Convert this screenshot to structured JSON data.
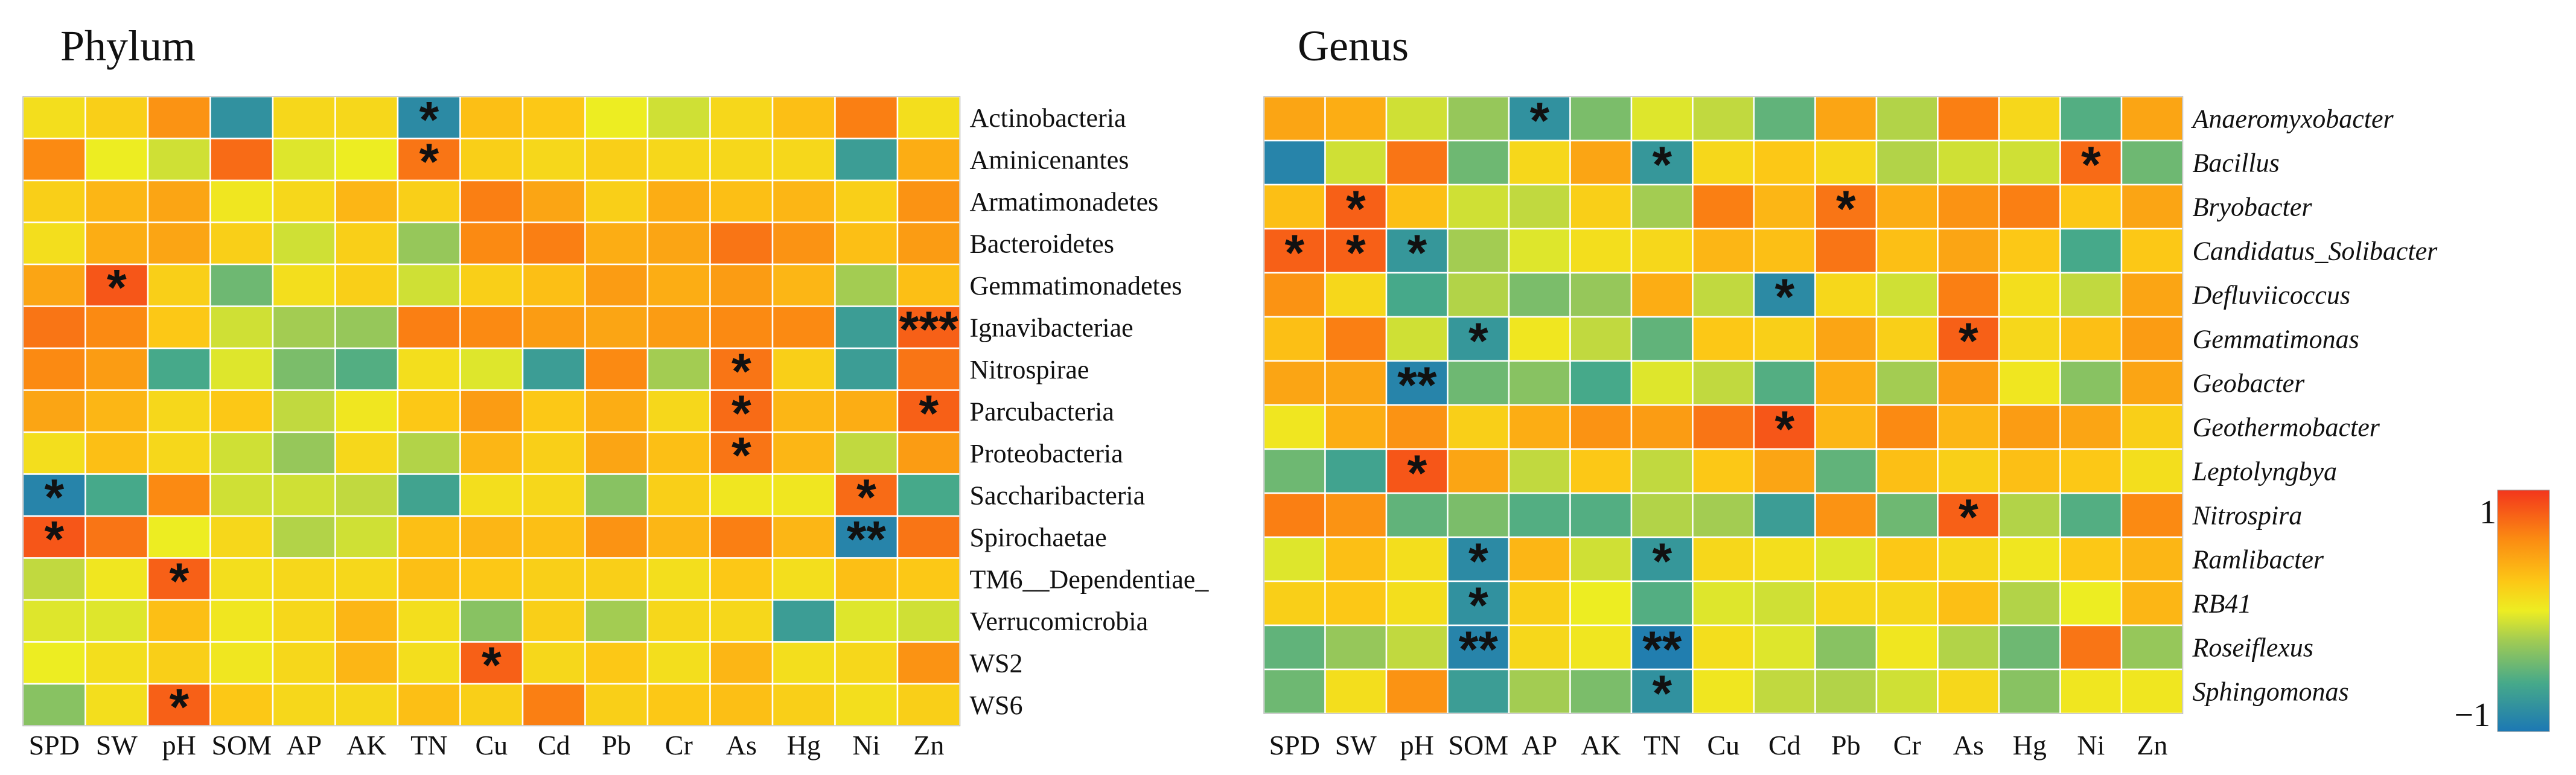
{
  "chart_data": [
    {
      "type": "heatmap",
      "title": "Phylum",
      "columns": [
        "SPD",
        "SW",
        "pH",
        "SOM",
        "AP",
        "AK",
        "TN",
        "Cu",
        "Cd",
        "Pb",
        "Cr",
        "As",
        "Hg",
        "Ni",
        "Zn"
      ],
      "rows": [
        "Actinobacteria",
        "Aminicenantes",
        "Armatimonadetes",
        "Bacteroidetes",
        "Gemmatimonadetes",
        "Ignavibacteriae",
        "Nitrospirae",
        "Parcubacteria",
        "Proteobacteria",
        "Saccharibacteria",
        "Spirochaetae",
        "TM6__Dependentiae_",
        "Verrucomicrobia",
        "WS2",
        "WS6"
      ],
      "values": [
        [
          0.1,
          0.2,
          0.55,
          -0.8,
          0.15,
          0.15,
          -0.85,
          0.3,
          0.25,
          0.0,
          -0.1,
          0.15,
          0.3,
          0.65,
          0.1
        ],
        [
          0.6,
          0.0,
          -0.1,
          0.75,
          -0.05,
          0.0,
          0.7,
          0.2,
          0.15,
          0.2,
          0.15,
          0.15,
          0.15,
          -0.7,
          0.4
        ],
        [
          0.2,
          0.35,
          0.45,
          0.05,
          0.15,
          0.35,
          0.2,
          0.65,
          0.45,
          0.2,
          0.4,
          0.3,
          0.35,
          0.2,
          0.55
        ],
        [
          0.1,
          0.4,
          0.45,
          0.2,
          -0.1,
          0.2,
          -0.3,
          0.6,
          0.65,
          0.4,
          0.45,
          0.7,
          0.55,
          0.3,
          0.5
        ],
        [
          0.45,
          0.85,
          0.2,
          -0.45,
          0.1,
          0.2,
          -0.1,
          0.2,
          0.3,
          0.5,
          0.4,
          0.5,
          0.35,
          -0.25,
          0.3
        ],
        [
          0.7,
          0.6,
          0.25,
          -0.1,
          -0.25,
          -0.3,
          0.65,
          0.6,
          0.5,
          0.45,
          0.5,
          0.6,
          0.6,
          -0.7,
          0.8
        ],
        [
          0.6,
          0.5,
          -0.6,
          -0.05,
          -0.4,
          -0.55,
          0.1,
          -0.05,
          -0.7,
          0.6,
          -0.25,
          0.7,
          0.2,
          -0.7,
          0.7
        ],
        [
          0.45,
          0.35,
          0.15,
          0.25,
          -0.15,
          0.05,
          0.25,
          0.5,
          0.25,
          0.4,
          0.15,
          0.75,
          0.35,
          0.4,
          0.8
        ],
        [
          0.1,
          0.3,
          0.15,
          -0.1,
          -0.3,
          0.15,
          -0.2,
          0.35,
          0.2,
          0.45,
          0.3,
          0.7,
          0.35,
          -0.15,
          0.5
        ],
        [
          -0.9,
          -0.6,
          0.6,
          -0.1,
          -0.1,
          -0.15,
          -0.65,
          0.1,
          0.15,
          -0.35,
          0.2,
          0.05,
          0.05,
          0.75,
          -0.6
        ],
        [
          0.85,
          0.7,
          0.0,
          0.15,
          -0.2,
          -0.1,
          0.3,
          0.35,
          0.3,
          0.55,
          0.35,
          0.65,
          0.35,
          -0.9,
          0.7
        ],
        [
          -0.15,
          0.05,
          0.8,
          0.1,
          0.15,
          0.15,
          0.3,
          0.25,
          0.2,
          0.2,
          0.1,
          0.25,
          0.1,
          0.3,
          0.25
        ],
        [
          -0.05,
          -0.05,
          0.3,
          0.05,
          0.15,
          0.35,
          0.1,
          -0.35,
          0.2,
          -0.25,
          0.15,
          0.15,
          -0.7,
          -0.05,
          -0.1
        ],
        [
          0.0,
          0.1,
          0.2,
          0.05,
          0.15,
          0.35,
          0.1,
          0.8,
          0.15,
          0.25,
          0.1,
          0.35,
          0.1,
          0.15,
          0.55
        ],
        [
          -0.35,
          0.1,
          0.8,
          0.25,
          0.15,
          0.15,
          0.3,
          0.2,
          0.65,
          0.2,
          0.25,
          0.3,
          0.2,
          0.1,
          0.2
        ]
      ],
      "significance": [
        [
          "",
          "",
          "",
          "",
          "",
          "",
          "*",
          "",
          "",
          "",
          "",
          "",
          "",
          "",
          ""
        ],
        [
          "",
          "",
          "",
          "",
          "",
          "",
          "*",
          "",
          "",
          "",
          "",
          "",
          "",
          "",
          ""
        ],
        [
          "",
          "",
          "",
          "",
          "",
          "",
          "",
          "",
          "",
          "",
          "",
          "",
          "",
          "",
          ""
        ],
        [
          "",
          "",
          "",
          "",
          "",
          "",
          "",
          "",
          "",
          "",
          "",
          "",
          "",
          "",
          ""
        ],
        [
          "",
          "*",
          "",
          "",
          "",
          "",
          "",
          "",
          "",
          "",
          "",
          "",
          "",
          "",
          ""
        ],
        [
          "",
          "",
          "",
          "",
          "",
          "",
          "",
          "",
          "",
          "",
          "",
          "",
          "",
          "",
          "***"
        ],
        [
          "",
          "",
          "",
          "",
          "",
          "",
          "",
          "",
          "",
          "",
          "",
          "*",
          "",
          "",
          ""
        ],
        [
          "",
          "",
          "",
          "",
          "",
          "",
          "",
          "",
          "",
          "",
          "",
          "*",
          "",
          "",
          "*"
        ],
        [
          "",
          "",
          "",
          "",
          "",
          "",
          "",
          "",
          "",
          "",
          "",
          "*",
          "",
          "",
          ""
        ],
        [
          "*",
          "",
          "",
          "",
          "",
          "",
          "",
          "",
          "",
          "",
          "",
          "",
          "",
          "*",
          ""
        ],
        [
          "*",
          "",
          "",
          "",
          "",
          "",
          "",
          "",
          "",
          "",
          "",
          "",
          "",
          "**",
          ""
        ],
        [
          "",
          "",
          "*",
          "",
          "",
          "",
          "",
          "",
          "",
          "",
          "",
          "",
          "",
          "",
          ""
        ],
        [
          "",
          "",
          "",
          "",
          "",
          "",
          "",
          "",
          "",
          "",
          "",
          "",
          "",
          "",
          ""
        ],
        [
          "",
          "",
          "",
          "",
          "",
          "",
          "",
          "*",
          "",
          "",
          "",
          "",
          "",
          "",
          ""
        ],
        [
          "",
          "",
          "*",
          "",
          "",
          "",
          "",
          "",
          "",
          "",
          "",
          "",
          "",
          "",
          ""
        ]
      ]
    },
    {
      "type": "heatmap",
      "title": "Genus",
      "columns": [
        "SPD",
        "SW",
        "pH",
        "SOM",
        "AP",
        "AK",
        "TN",
        "Cu",
        "Cd",
        "Pb",
        "Cr",
        "As",
        "Hg",
        "Ni",
        "Zn"
      ],
      "rows": [
        "Anaeromyxobacter",
        "Bacillus",
        "Bryobacter",
        "Candidatus_Solibacter",
        "Defluviicoccus",
        "Gemmatimonas",
        "Geobacter",
        "Geothermobacter",
        "Leptolyngbya",
        "Nitrospira",
        "Ramlibacter",
        "RB41",
        "Roseiflexus",
        "Sphingomonas"
      ],
      "values": [
        [
          0.45,
          0.4,
          -0.1,
          -0.3,
          -0.8,
          -0.4,
          -0.05,
          -0.15,
          -0.5,
          0.45,
          -0.2,
          0.65,
          0.15,
          -0.55,
          0.45
        ],
        [
          -0.9,
          -0.1,
          0.7,
          -0.45,
          0.15,
          0.45,
          -0.75,
          0.15,
          0.25,
          0.15,
          -0.2,
          -0.1,
          -0.1,
          0.75,
          -0.45
        ],
        [
          0.3,
          0.8,
          0.3,
          -0.1,
          -0.15,
          0.2,
          -0.25,
          0.65,
          0.35,
          0.7,
          0.4,
          0.55,
          0.65,
          0.25,
          0.45
        ],
        [
          0.8,
          0.8,
          -0.75,
          -0.25,
          -0.05,
          0.1,
          0.15,
          0.35,
          0.3,
          0.7,
          0.3,
          0.45,
          0.25,
          -0.6,
          0.25
        ],
        [
          0.55,
          0.15,
          -0.6,
          -0.2,
          -0.4,
          -0.3,
          0.4,
          -0.15,
          -0.85,
          0.15,
          -0.1,
          0.65,
          0.1,
          -0.15,
          0.45
        ],
        [
          0.3,
          0.65,
          -0.1,
          -0.75,
          0.05,
          -0.15,
          -0.5,
          0.25,
          0.2,
          0.45,
          0.2,
          0.8,
          0.15,
          0.3,
          0.5
        ],
        [
          0.45,
          0.45,
          -0.9,
          -0.45,
          -0.35,
          -0.6,
          -0.05,
          -0.15,
          -0.55,
          0.4,
          -0.25,
          0.5,
          0.05,
          -0.35,
          0.45
        ],
        [
          0.05,
          0.4,
          0.55,
          0.2,
          0.4,
          0.55,
          0.5,
          0.7,
          0.85,
          0.35,
          0.6,
          0.35,
          0.5,
          0.45,
          0.2
        ],
        [
          -0.45,
          -0.65,
          0.85,
          0.45,
          -0.15,
          0.25,
          -0.15,
          0.25,
          0.45,
          -0.5,
          0.3,
          0.2,
          0.3,
          0.25,
          0.1
        ],
        [
          0.65,
          0.55,
          -0.5,
          -0.4,
          -0.55,
          -0.55,
          -0.2,
          -0.25,
          -0.7,
          0.55,
          -0.45,
          0.8,
          -0.2,
          -0.55,
          0.6
        ],
        [
          -0.05,
          0.3,
          0.1,
          -0.85,
          0.35,
          -0.1,
          -0.75,
          0.15,
          0.1,
          -0.05,
          0.25,
          0.15,
          0.05,
          0.25,
          0.35
        ],
        [
          0.2,
          0.25,
          0.1,
          -0.8,
          0.2,
          0.0,
          -0.55,
          -0.05,
          -0.1,
          0.15,
          0.15,
          0.3,
          -0.2,
          0.0,
          0.35
        ],
        [
          -0.5,
          -0.3,
          -0.15,
          -0.9,
          0.15,
          0.05,
          -0.95,
          0.1,
          -0.05,
          -0.35,
          0.05,
          -0.2,
          -0.45,
          0.7,
          -0.3
        ],
        [
          -0.45,
          0.1,
          0.55,
          -0.7,
          -0.25,
          -0.4,
          -0.8,
          0.05,
          -0.15,
          -0.2,
          -0.1,
          0.15,
          -0.35,
          0.05,
          0.05
        ]
      ],
      "significance": [
        [
          "",
          "",
          "",
          "",
          "*",
          "",
          "",
          "",
          "",
          "",
          "",
          "",
          "",
          "",
          ""
        ],
        [
          "",
          "",
          "",
          "",
          "",
          "",
          "*",
          "",
          "",
          "",
          "",
          "",
          "",
          "*",
          ""
        ],
        [
          "",
          "*",
          "",
          "",
          "",
          "",
          "",
          "",
          "",
          "*",
          "",
          "",
          "",
          "",
          ""
        ],
        [
          "*",
          "*",
          "*",
          "",
          "",
          "",
          "",
          "",
          "",
          "",
          "",
          "",
          "",
          "",
          ""
        ],
        [
          "",
          "",
          "",
          "",
          "",
          "",
          "",
          "",
          "*",
          "",
          "",
          "",
          "",
          "",
          ""
        ],
        [
          "",
          "",
          "",
          "*",
          "",
          "",
          "",
          "",
          "",
          "",
          "",
          "*",
          "",
          "",
          ""
        ],
        [
          "",
          "",
          "**",
          "",
          "",
          "",
          "",
          "",
          "",
          "",
          "",
          "",
          "",
          "",
          ""
        ],
        [
          "",
          "",
          "",
          "",
          "",
          "",
          "",
          "",
          "*",
          "",
          "",
          "",
          "",
          "",
          ""
        ],
        [
          "",
          "",
          "*",
          "",
          "",
          "",
          "",
          "",
          "",
          "",
          "",
          "",
          "",
          "",
          ""
        ],
        [
          "",
          "",
          "",
          "",
          "",
          "",
          "",
          "",
          "",
          "",
          "",
          "*",
          "",
          "",
          ""
        ],
        [
          "",
          "",
          "",
          "*",
          "",
          "",
          "*",
          "",
          "",
          "",
          "",
          "",
          "",
          "",
          ""
        ],
        [
          "",
          "",
          "",
          "*",
          "",
          "",
          "",
          "",
          "",
          "",
          "",
          "",
          "",
          "",
          ""
        ],
        [
          "",
          "",
          "",
          "**",
          "",
          "",
          "**",
          "",
          "",
          "",
          "",
          "",
          "",
          "",
          ""
        ],
        [
          "",
          "",
          "",
          "",
          "",
          "",
          "*",
          "",
          "",
          "",
          "",
          "",
          "",
          "",
          ""
        ]
      ]
    }
  ],
  "colorbar": {
    "max_label": "1",
    "min_label": "−1",
    "range": [
      -1,
      1
    ]
  }
}
